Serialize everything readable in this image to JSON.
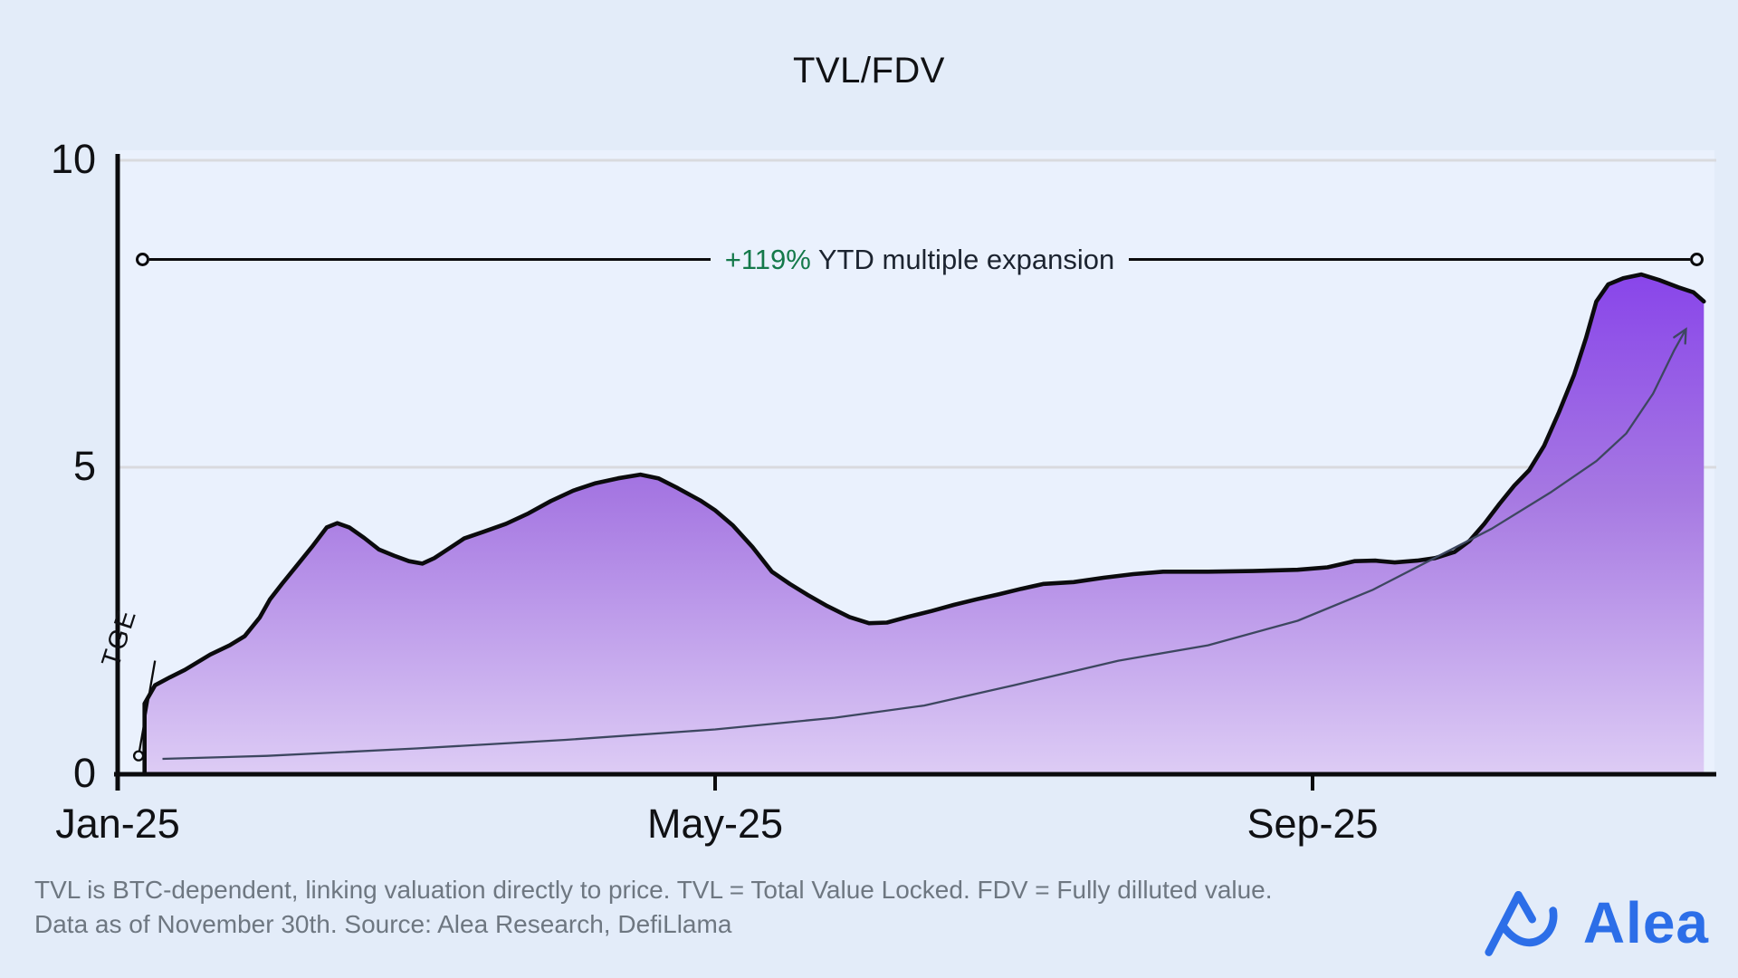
{
  "title": "TVL/FDV",
  "footer": {
    "line1": "TVL is BTC-dependent, linking valuation directly to price. TVL = Total Value Locked. FDV = Fully dilluted value.",
    "line2": "Data as of November 30th. Source: Alea Research, DefiLlama"
  },
  "logo": {
    "text": "Alea"
  },
  "colors": {
    "background": "#e3ecf9",
    "plot_bg": "#eaf1fd",
    "grid": "#d9dade",
    "axis": "#0b0b0d",
    "area_outline": "#0b0b0d",
    "area_top": "#8138ec",
    "area_mid": "#a678e2",
    "area_bottom": "#ddccf5",
    "arrow": "#3d4760",
    "highlight_green": "#14794a",
    "logo_blue": "#2c6ee8",
    "text_dark": "#101114",
    "text_gray": "#6e7781"
  },
  "chart_data": {
    "type": "area",
    "title": "TVL/FDV",
    "xlabel": "",
    "ylabel": "",
    "grid": "horizontal-only",
    "x_axis": {
      "unit": "month",
      "ticks": [
        {
          "label": "Jan-25",
          "month": 0
        },
        {
          "label": "May-25",
          "month": 4
        },
        {
          "label": "Sep-25",
          "month": 8
        }
      ]
    },
    "y_axis": {
      "ticks": [
        "0",
        "5",
        "10"
      ],
      "values": [
        0,
        5,
        10
      ],
      "range": [
        0,
        10
      ],
      "grid_values": [
        5,
        10
      ]
    },
    "series": [
      {
        "name": "TVL/FDV ratio",
        "type": "area",
        "points": [
          [
            0.18,
            1.15
          ],
          [
            0.25,
            1.45
          ],
          [
            0.35,
            1.58
          ],
          [
            0.45,
            1.7
          ],
          [
            0.62,
            1.95
          ],
          [
            0.75,
            2.1
          ],
          [
            0.85,
            2.25
          ],
          [
            0.95,
            2.55
          ],
          [
            1.02,
            2.85
          ],
          [
            1.1,
            3.1
          ],
          [
            1.2,
            3.4
          ],
          [
            1.3,
            3.7
          ],
          [
            1.4,
            4.02
          ],
          [
            1.47,
            4.09
          ],
          [
            1.55,
            4.02
          ],
          [
            1.65,
            3.85
          ],
          [
            1.75,
            3.66
          ],
          [
            1.85,
            3.56
          ],
          [
            1.95,
            3.47
          ],
          [
            2.04,
            3.43
          ],
          [
            2.12,
            3.52
          ],
          [
            2.22,
            3.68
          ],
          [
            2.32,
            3.84
          ],
          [
            2.45,
            3.95
          ],
          [
            2.6,
            4.08
          ],
          [
            2.75,
            4.25
          ],
          [
            2.9,
            4.45
          ],
          [
            3.05,
            4.62
          ],
          [
            3.2,
            4.74
          ],
          [
            3.35,
            4.82
          ],
          [
            3.5,
            4.88
          ],
          [
            3.62,
            4.82
          ],
          [
            3.75,
            4.66
          ],
          [
            3.9,
            4.46
          ],
          [
            4.0,
            4.3
          ],
          [
            4.12,
            4.05
          ],
          [
            4.25,
            3.7
          ],
          [
            4.38,
            3.3
          ],
          [
            4.5,
            3.1
          ],
          [
            4.62,
            2.92
          ],
          [
            4.75,
            2.74
          ],
          [
            4.9,
            2.56
          ],
          [
            5.03,
            2.46
          ],
          [
            5.15,
            2.47
          ],
          [
            5.3,
            2.57
          ],
          [
            5.45,
            2.66
          ],
          [
            5.6,
            2.76
          ],
          [
            5.75,
            2.85
          ],
          [
            5.9,
            2.93
          ],
          [
            6.05,
            3.02
          ],
          [
            6.2,
            3.1
          ],
          [
            6.4,
            3.13
          ],
          [
            6.6,
            3.2
          ],
          [
            6.8,
            3.26
          ],
          [
            7.0,
            3.3
          ],
          [
            7.3,
            3.3
          ],
          [
            7.6,
            3.31
          ],
          [
            7.9,
            3.33
          ],
          [
            8.1,
            3.37
          ],
          [
            8.28,
            3.47
          ],
          [
            8.42,
            3.48
          ],
          [
            8.55,
            3.45
          ],
          [
            8.7,
            3.48
          ],
          [
            8.82,
            3.52
          ],
          [
            8.95,
            3.62
          ],
          [
            9.05,
            3.8
          ],
          [
            9.15,
            4.08
          ],
          [
            9.25,
            4.4
          ],
          [
            9.35,
            4.7
          ],
          [
            9.45,
            4.95
          ],
          [
            9.55,
            5.35
          ],
          [
            9.65,
            5.9
          ],
          [
            9.75,
            6.5
          ],
          [
            9.83,
            7.1
          ],
          [
            9.9,
            7.7
          ],
          [
            9.98,
            7.98
          ],
          [
            10.08,
            8.08
          ],
          [
            10.2,
            8.14
          ],
          [
            10.32,
            8.05
          ],
          [
            10.45,
            7.93
          ],
          [
            10.55,
            7.85
          ],
          [
            10.62,
            7.7
          ]
        ]
      },
      {
        "name": "exponential trend arrow",
        "type": "line",
        "arrowhead": true,
        "points": [
          [
            0.3,
            0.25
          ],
          [
            1.0,
            0.3
          ],
          [
            2.0,
            0.42
          ],
          [
            3.0,
            0.56
          ],
          [
            4.0,
            0.73
          ],
          [
            4.8,
            0.92
          ],
          [
            5.4,
            1.12
          ],
          [
            6.0,
            1.45
          ],
          [
            6.7,
            1.85
          ],
          [
            7.3,
            2.1
          ],
          [
            7.9,
            2.5
          ],
          [
            8.4,
            3.0
          ],
          [
            8.8,
            3.5
          ],
          [
            9.2,
            4.0
          ],
          [
            9.6,
            4.6
          ],
          [
            9.9,
            5.1
          ],
          [
            10.1,
            5.55
          ],
          [
            10.28,
            6.2
          ],
          [
            10.42,
            6.9
          ],
          [
            10.5,
            7.25
          ]
        ]
      }
    ],
    "annotations": {
      "expansion": {
        "highlight": "+119%",
        "rest": " YTD multiple expansion",
        "y_value": 8.38,
        "x_start_month": 0.16,
        "x_end_month": 10.56
      },
      "tge": {
        "label": "TGE",
        "marker": [
          0.14,
          0.3
        ],
        "line_to": [
          0.25,
          1.85
        ]
      }
    }
  }
}
